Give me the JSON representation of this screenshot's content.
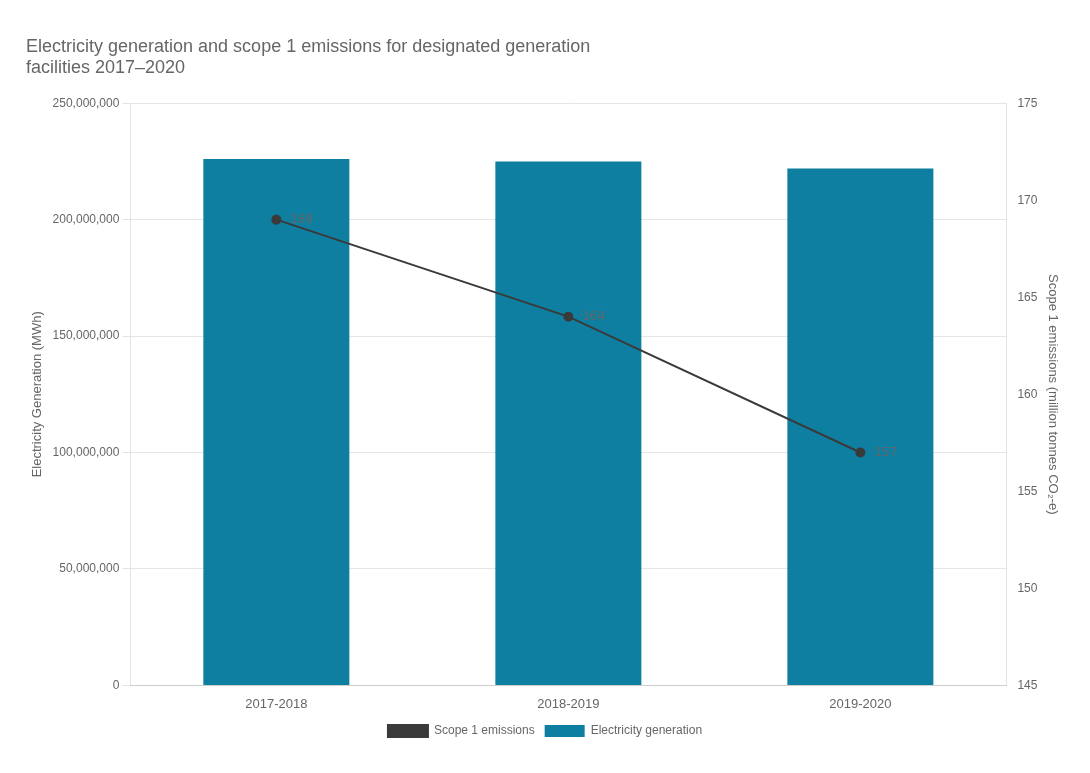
{
  "chart_data": {
    "type": "bar",
    "title": [
      "Electricity generation and scope 1 emissions for designated generation",
      "facilities 2017–2020"
    ],
    "categories": [
      "2017-2018",
      "2018-2019",
      "2019-2020"
    ],
    "series": [
      {
        "name": "Electricity generation",
        "type": "bar",
        "color": "#0E7FA0",
        "values": [
          226000000,
          225000000,
          222000000
        ]
      },
      {
        "name": "Scope 1 emissions",
        "type": "line",
        "color": "#3a3a3a",
        "marker": "circle",
        "axis": "y2",
        "values": [
          169,
          164,
          157
        ],
        "value_labels": [
          "·169",
          "·164",
          "·157"
        ],
        "data_labels": true
      }
    ],
    "ylabel": "Electricity Generation (MWh)",
    "y2label": "Scope 1 emissions (million tonnes CO₂-e)",
    "ylim": [
      0,
      250000000
    ],
    "yticks": [
      0,
      {
        "value": 50000000,
        "label": "50,000,000"
      },
      {
        "value": 100000000,
        "label": "100,000,000"
      },
      {
        "value": 150000000,
        "label": "150,000,000"
      },
      {
        "value": 200000000,
        "label": "200,000,000"
      },
      {
        "value": 250000000,
        "label": "250,000,000"
      }
    ],
    "y2lim": [
      145,
      175
    ],
    "y2ticks": [
      145,
      150,
      155,
      160,
      165,
      170,
      175
    ],
    "grid": true,
    "legend": "bottom"
  }
}
